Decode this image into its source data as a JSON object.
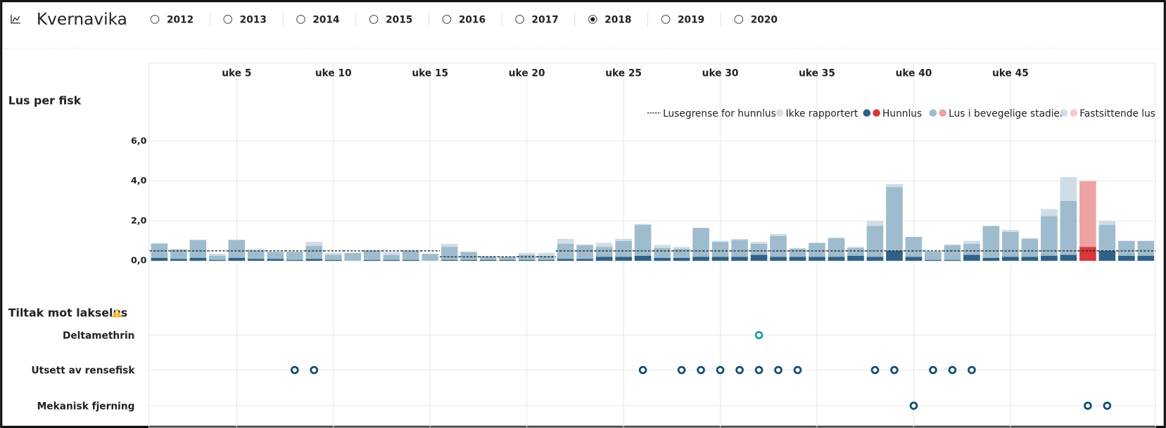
{
  "header": {
    "title": "Kvernavika",
    "years": [
      "2012",
      "2013",
      "2014",
      "2015",
      "2016",
      "2017",
      "2018",
      "2019",
      "2020"
    ],
    "selected_year": "2018"
  },
  "chart_data": {
    "type": "bar",
    "stacked": true,
    "y_label": "Lus per fisk",
    "x": [
      1,
      2,
      3,
      4,
      5,
      6,
      7,
      8,
      9,
      10,
      11,
      12,
      13,
      14,
      15,
      16,
      17,
      18,
      19,
      20,
      21,
      22,
      23,
      24,
      25,
      26,
      27,
      28,
      29,
      30,
      31,
      32,
      33,
      34,
      35,
      36,
      37,
      38,
      39,
      40,
      41,
      42,
      43,
      44,
      45,
      46,
      47,
      48,
      49,
      50,
      51,
      52
    ],
    "xlim": [
      0.5,
      52.5
    ],
    "xticks": [
      {
        "value": 5,
        "label": "uke 5"
      },
      {
        "value": 10,
        "label": "uke 10"
      },
      {
        "value": 15,
        "label": "uke 15"
      },
      {
        "value": 20,
        "label": "uke 20"
      },
      {
        "value": 25,
        "label": "uke 25"
      },
      {
        "value": 30,
        "label": "uke 30"
      },
      {
        "value": 35,
        "label": "uke 35"
      },
      {
        "value": 40,
        "label": "uke 40"
      },
      {
        "value": 45,
        "label": "uke 45"
      }
    ],
    "ylim": [
      0,
      6
    ],
    "yticks": [
      {
        "value": 0,
        "label": "0,0"
      },
      {
        "value": 2,
        "label": "2,0"
      },
      {
        "value": 4,
        "label": "4,0"
      },
      {
        "value": 6,
        "label": "6,0"
      }
    ],
    "grid": true,
    "alert_x": [
      49
    ],
    "not_reported": {
      "name": "Ikke rapportert",
      "color": "#dedede"
    },
    "series": [
      {
        "name": "Hunnlus",
        "color": "#2f6189",
        "alert_color": "#d9373a",
        "values": [
          0.15,
          0.1,
          0.15,
          0.05,
          0.15,
          0.1,
          0.1,
          0.05,
          0.1,
          0.05,
          0,
          0.05,
          0.05,
          0.05,
          0,
          0.05,
          0.05,
          0.05,
          0.05,
          0.05,
          0.05,
          0.1,
          0.1,
          0.2,
          0.2,
          0.25,
          0.15,
          0.15,
          0.2,
          0.2,
          0.2,
          0.3,
          0.2,
          0.2,
          0.2,
          0.2,
          0.25,
          0.2,
          0.5,
          0.2,
          0.05,
          0.05,
          0.3,
          0.15,
          0.2,
          0.2,
          0.25,
          0.3,
          0.7,
          0.5,
          0.25,
          0.25
        ]
      },
      {
        "name": "Lus i bevegelige stadier",
        "color": "#9ebccd",
        "alert_color": "#eda2a3",
        "values": [
          0.7,
          0.45,
          0.9,
          0.2,
          0.9,
          0.4,
          0.35,
          0.4,
          0.65,
          0.25,
          0.4,
          0.45,
          0.25,
          0.45,
          0.35,
          0.65,
          0.4,
          0.15,
          0.15,
          0.25,
          0.2,
          0.75,
          0.7,
          0.5,
          0.8,
          1.55,
          0.5,
          0.45,
          1.45,
          0.75,
          0.85,
          0.55,
          1.05,
          0.4,
          0.7,
          0.95,
          0.4,
          1.55,
          3.2,
          1.0,
          0.4,
          0.75,
          0.55,
          1.6,
          1.25,
          0.9,
          2.0,
          2.7,
          3.3,
          1.3,
          0.75,
          0.75
        ]
      },
      {
        "name": "Fastsittende lus",
        "color": "#cfdde6",
        "alert_color": "#f5c9ca",
        "values": [
          0.05,
          0.05,
          0,
          0.1,
          0,
          0.1,
          0,
          0,
          0.2,
          0.1,
          0,
          0.05,
          0.15,
          0.05,
          0,
          0.15,
          0,
          0.05,
          0,
          0.1,
          0.15,
          0.25,
          0,
          0.2,
          0.1,
          0.05,
          0.15,
          0.1,
          0,
          0.05,
          0.05,
          0.1,
          0.1,
          0.05,
          0,
          0,
          0.05,
          0.25,
          0.15,
          0,
          0.05,
          0,
          0.15,
          0,
          0.1,
          0.05,
          0.35,
          1.2,
          0,
          0.2,
          0,
          0
        ]
      },
      {
        "name": "Lusegrense for hunnlus",
        "type": "line",
        "color": "#222222",
        "values": [
          0.5,
          0.5,
          0.5,
          0.5,
          0.5,
          0.5,
          0.5,
          0.5,
          0.5,
          0.5,
          0.5,
          0.5,
          0.5,
          0.5,
          0.5,
          0.2,
          0.2,
          0.2,
          0.2,
          0.2,
          0.2,
          0.5,
          0.5,
          0.5,
          0.5,
          0.5,
          0.5,
          0.5,
          0.5,
          0.5,
          0.5,
          0.5,
          0.5,
          0.5,
          0.5,
          0.5,
          0.5,
          0.5,
          0.5,
          0.5,
          0.5,
          0.5,
          0.5,
          0.5,
          0.5,
          0.5,
          0.5,
          0.5,
          0.5,
          0.5,
          0.5,
          0.5
        ]
      }
    ]
  },
  "treatments": {
    "title": "Tiltak mot lakselus",
    "rows": [
      {
        "name": "Deltamethrin",
        "color": "#1a9e9e",
        "weeks": [
          32
        ]
      },
      {
        "name": "Utsett av rensefisk",
        "color": "#0b4f73",
        "weeks": [
          8,
          9,
          26,
          28,
          29,
          30,
          31,
          32,
          33,
          34,
          38,
          39,
          41,
          42,
          43
        ]
      },
      {
        "name": "Mekanisk fjerning",
        "color": "#0b4f73",
        "weeks": [
          40,
          49,
          50
        ]
      }
    ]
  }
}
